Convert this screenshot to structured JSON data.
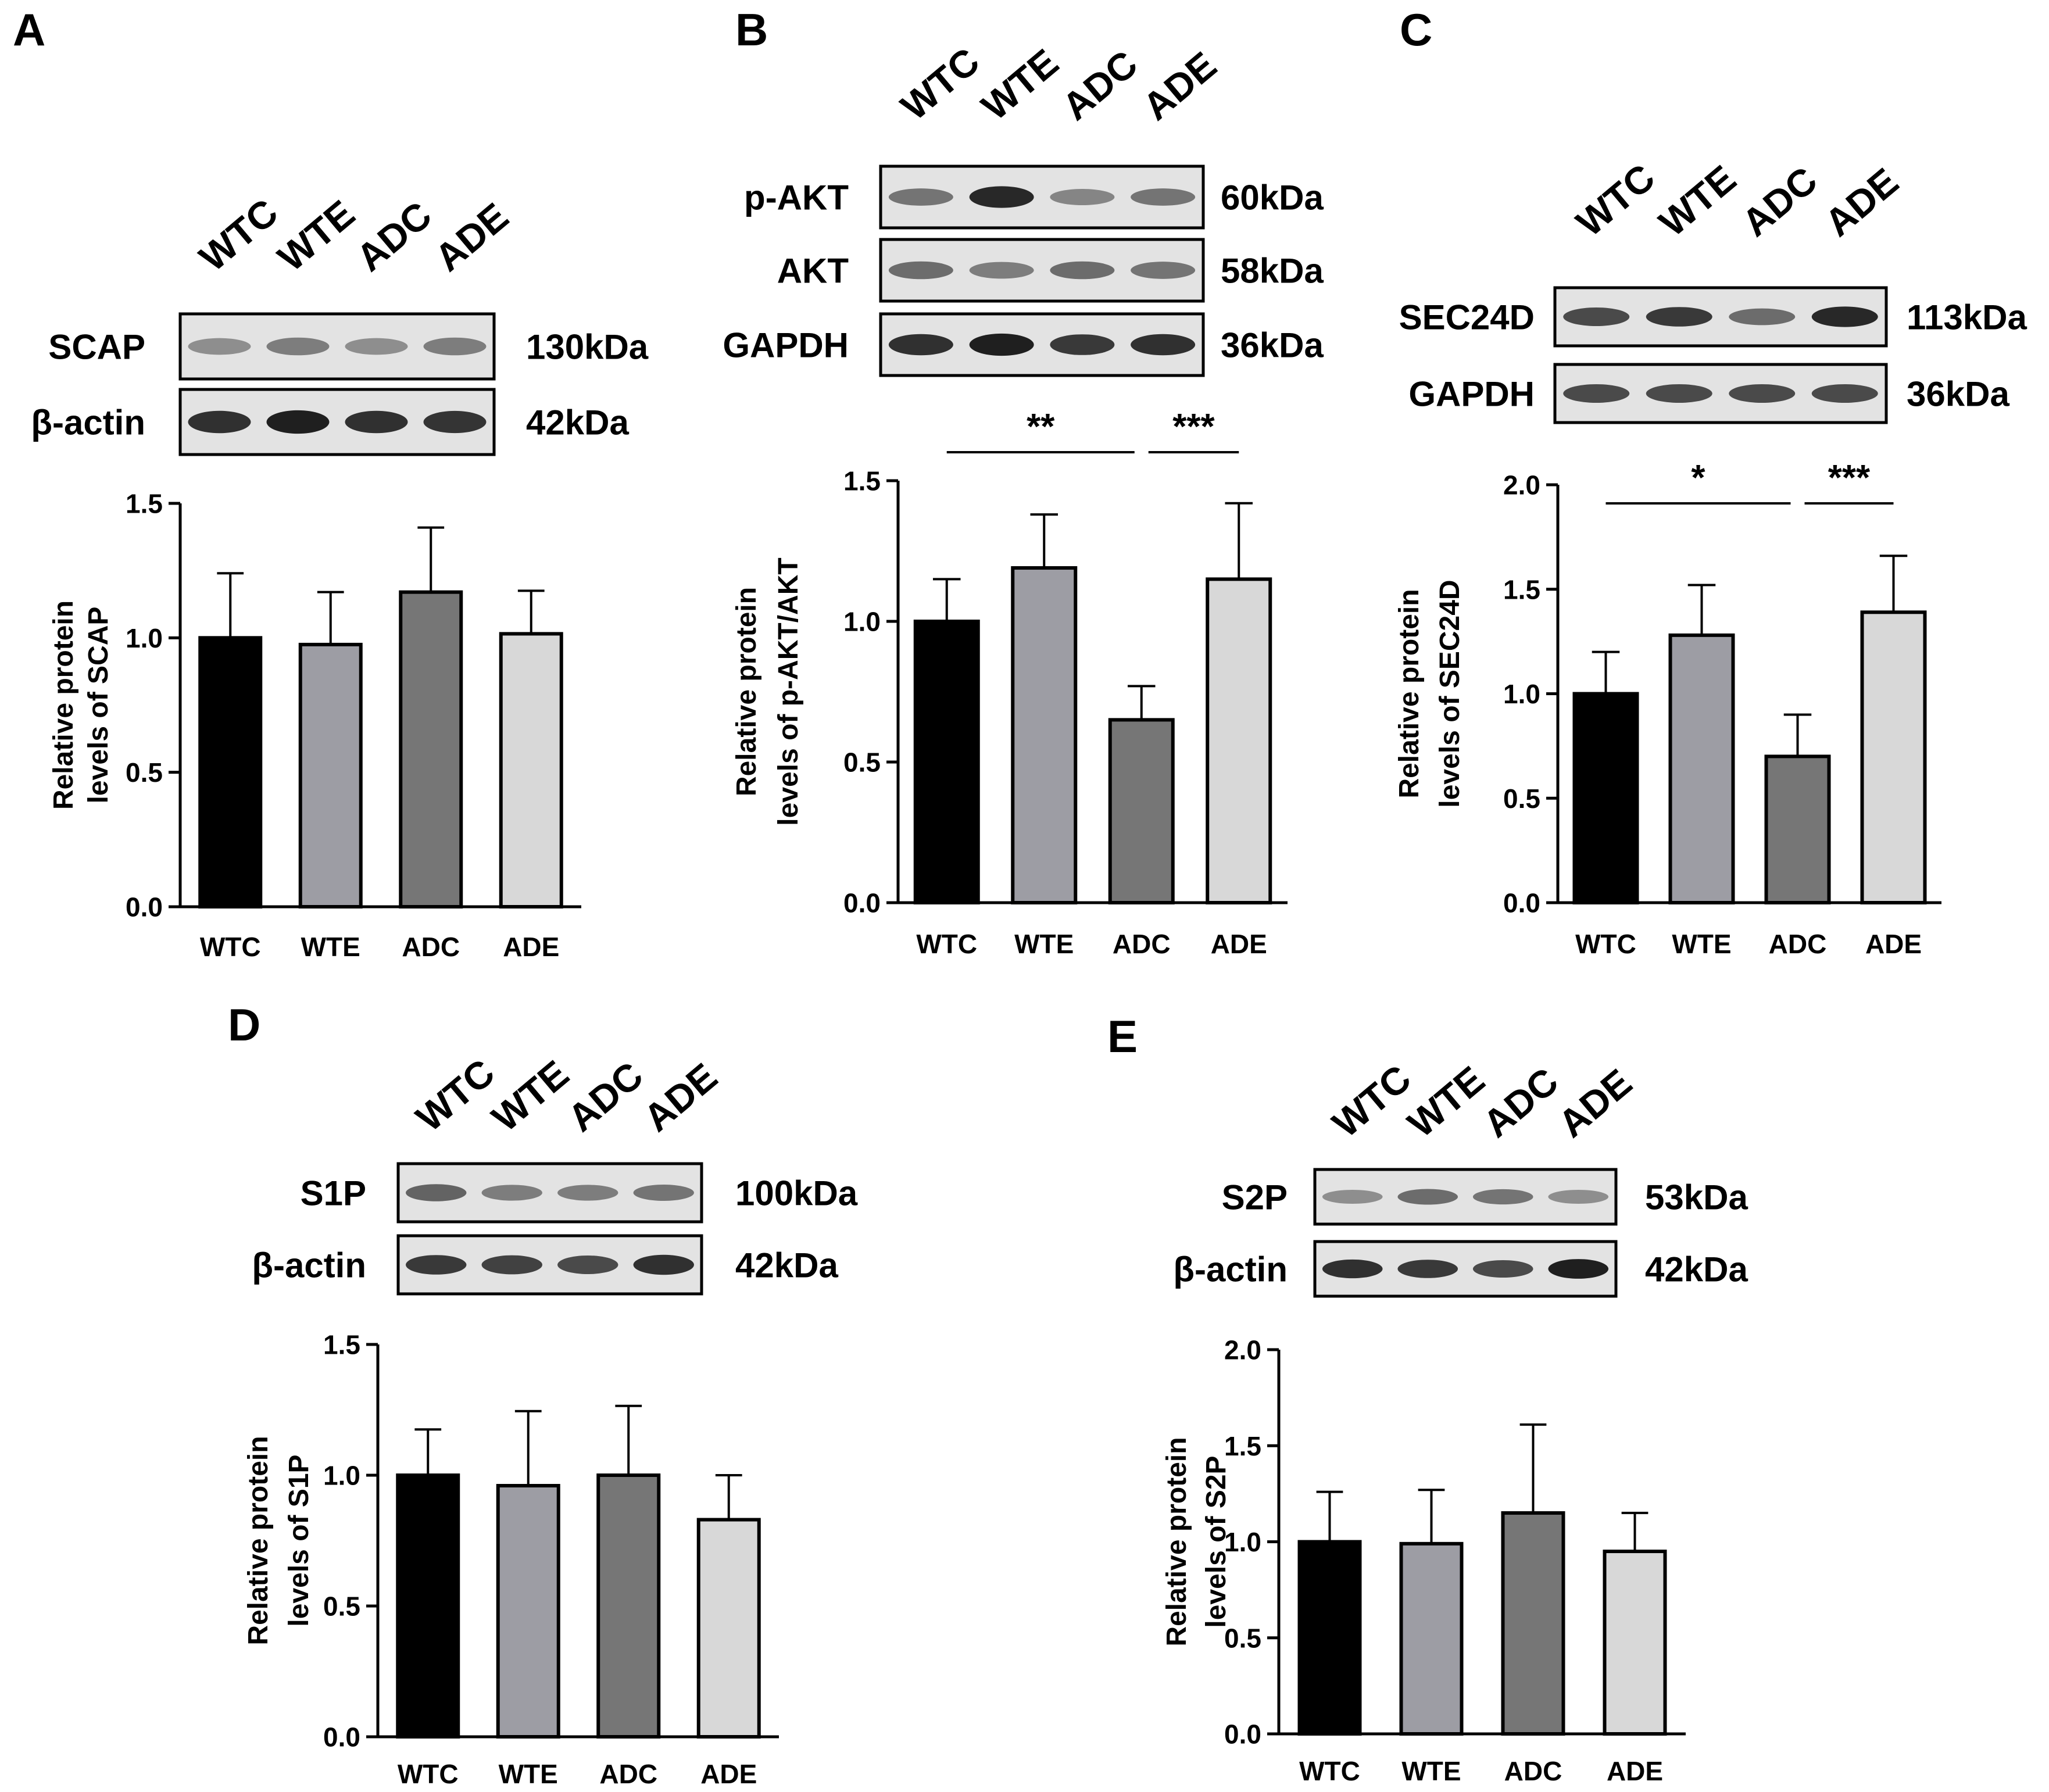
{
  "categories": [
    "WTC",
    "WTE",
    "ADC",
    "ADE"
  ],
  "bar_colors": [
    "#000000",
    "#9d9da4",
    "#767676",
    "#d8d8d8"
  ],
  "panels": [
    {
      "id": "A",
      "label": "A",
      "blot_rows": [
        {
          "protein": "SCAP",
          "size": "130kDa",
          "intensity": [
            0.35,
            0.45,
            0.35,
            0.45
          ]
        },
        {
          "protein": "β-actin",
          "size": "42kDa",
          "intensity": [
            0.9,
            1.0,
            0.9,
            0.88
          ]
        }
      ]
    },
    {
      "id": "B",
      "label": "B",
      "blot_rows": [
        {
          "protein": "p-AKT",
          "size": "60kDa",
          "intensity": [
            0.5,
            0.95,
            0.4,
            0.5
          ]
        },
        {
          "protein": "AKT",
          "size": "58kDa",
          "intensity": [
            0.55,
            0.45,
            0.55,
            0.5
          ]
        },
        {
          "protein": "GAPDH",
          "size": "36kDa",
          "intensity": [
            0.9,
            1.0,
            0.85,
            0.9
          ]
        }
      ]
    },
    {
      "id": "C",
      "label": "C",
      "blot_rows": [
        {
          "protein": "SEC24D",
          "size": "113kDa",
          "intensity": [
            0.75,
            0.85,
            0.55,
            0.95
          ]
        },
        {
          "protein": "GAPDH",
          "size": "36kDa",
          "intensity": [
            0.75,
            0.75,
            0.75,
            0.75
          ]
        }
      ]
    },
    {
      "id": "D",
      "label": "D",
      "blot_rows": [
        {
          "protein": "S1P",
          "size": "100kDa",
          "intensity": [
            0.6,
            0.45,
            0.45,
            0.5
          ]
        },
        {
          "protein": "β-actin",
          "size": "42kDa",
          "intensity": [
            0.85,
            0.8,
            0.75,
            0.9
          ]
        }
      ]
    },
    {
      "id": "E",
      "label": "E",
      "blot_rows": [
        {
          "protein": "S2P",
          "size": "53kDa",
          "intensity": [
            0.35,
            0.55,
            0.5,
            0.35
          ]
        },
        {
          "protein": "β-actin",
          "size": "42kDa",
          "intensity": [
            0.9,
            0.85,
            0.75,
            1.0
          ]
        }
      ]
    }
  ],
  "chart_data": [
    {
      "panel": "A",
      "type": "bar",
      "categories": [
        "WTC",
        "WTE",
        "ADC",
        "ADE"
      ],
      "values": [
        1.0,
        0.975,
        1.17,
        1.015
      ],
      "errors": [
        0.24,
        0.195,
        0.24,
        0.16
      ],
      "ylabel": [
        "Relative protein",
        "levels of SCAP"
      ],
      "ylim": [
        0,
        1.5
      ],
      "yticks": [
        "0.0",
        "0.5",
        "1.0",
        "1.5"
      ],
      "significance": []
    },
    {
      "panel": "B",
      "type": "bar",
      "categories": [
        "WTC",
        "WTE",
        "ADC",
        "ADE"
      ],
      "values": [
        1.0,
        1.19,
        0.65,
        1.15
      ],
      "errors": [
        0.15,
        0.19,
        0.12,
        0.27
      ],
      "ylabel": [
        "Relative protein",
        "levels of p-AKT/AKT"
      ],
      "ylim": [
        0,
        1.5
      ],
      "yticks": [
        "0.0",
        "0.5",
        "1.0",
        "1.5"
      ],
      "significance": [
        {
          "from": 0,
          "to": 2,
          "label": "**"
        },
        {
          "from": 2,
          "to": 3,
          "label": "***"
        }
      ]
    },
    {
      "panel": "C",
      "type": "bar",
      "categories": [
        "WTC",
        "WTE",
        "ADC",
        "ADE"
      ],
      "values": [
        1.0,
        1.28,
        0.7,
        1.39
      ],
      "errors": [
        0.2,
        0.24,
        0.2,
        0.27
      ],
      "ylabel": [
        "Relative protein",
        "levels of SEC24D"
      ],
      "ylim": [
        0,
        2.0
      ],
      "yticks": [
        "0.0",
        "0.5",
        "1.0",
        "1.5",
        "2.0"
      ],
      "significance": [
        {
          "from": 0,
          "to": 2,
          "label": "*"
        },
        {
          "from": 2,
          "to": 3,
          "label": "***"
        }
      ]
    },
    {
      "panel": "D",
      "type": "bar",
      "categories": [
        "WTC",
        "WTE",
        "ADC",
        "ADE"
      ],
      "values": [
        1.0,
        0.96,
        1.0,
        0.83
      ],
      "errors": [
        0.175,
        0.285,
        0.265,
        0.17
      ],
      "ylabel": [
        "Relative protein",
        "levels of S1P"
      ],
      "ylim": [
        0,
        1.5
      ],
      "yticks": [
        "0.0",
        "0.5",
        "1.0",
        "1.5"
      ],
      "significance": []
    },
    {
      "panel": "E",
      "type": "bar",
      "categories": [
        "WTC",
        "WTE",
        "ADC",
        "ADE"
      ],
      "values": [
        1.0,
        0.99,
        1.15,
        0.95
      ],
      "errors": [
        0.26,
        0.28,
        0.46,
        0.2
      ],
      "ylabel": [
        "Relative protein",
        "levels of S2P"
      ],
      "ylim": [
        0,
        2.0
      ],
      "yticks": [
        "0.0",
        "0.5",
        "1.0",
        "1.5",
        "2.0"
      ],
      "significance": []
    }
  ]
}
